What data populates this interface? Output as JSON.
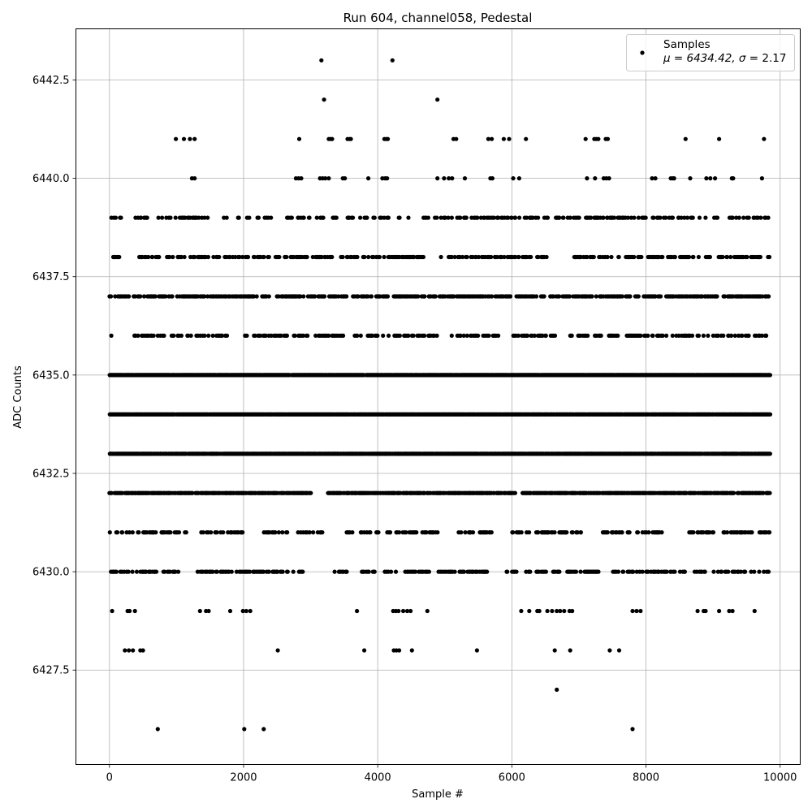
{
  "chart_data": {
    "type": "scatter",
    "title": "Run 604, channel058, Pedestal",
    "xlabel": "Sample #",
    "ylabel": "ADC Counts",
    "xlim": [
      -500,
      10300
    ],
    "ylim": [
      6425.1,
      6443.8
    ],
    "xticks": [
      0,
      2000,
      4000,
      6000,
      8000,
      10000
    ],
    "xtick_labels": [
      "0",
      "2000",
      "4000",
      "6000",
      "8000",
      "10000"
    ],
    "yticks": [
      6427.5,
      6430.0,
      6432.5,
      6435.0,
      6437.5,
      6440.0,
      6442.5
    ],
    "ytick_labels": [
      "6427.5",
      "6430.0",
      "6432.5",
      "6435.0",
      "6437.5",
      "6440.0",
      "6442.5"
    ],
    "grid": true,
    "legend_position": "top-right",
    "legend": {
      "label_line1": "Samples",
      "label_line2_prefix": "μ = 6434.42, ",
      "label_line2_sigma": "σ",
      "label_line2_suffix": " = 2.17"
    },
    "marker_color": "#000000",
    "n_samples": 9850,
    "mean": 6434.42,
    "sigma": 2.17,
    "level_occupancy": [
      {
        "y": 6443,
        "x": [
          3160,
          4220
        ]
      },
      {
        "y": 6442,
        "x": [
          3200,
          4890
        ]
      },
      {
        "y": 6441,
        "x": [
          990,
          1110,
          1200,
          1270,
          2830,
          3270,
          3300,
          3320,
          3550,
          3580,
          3600,
          4100,
          4130,
          4150,
          5130,
          5170,
          5650,
          5700,
          5880,
          5960,
          6210,
          7100,
          7230,
          7260,
          7290,
          7400,
          7430,
          8590,
          9090,
          9760
        ]
      },
      {
        "y": 6440,
        "x": [
          1230,
          1270,
          2780,
          2820,
          2860,
          3140,
          3180,
          3220,
          3270,
          3480,
          3510,
          3860,
          4070,
          4110,
          4140,
          4890,
          4990,
          5060,
          5110,
          5300,
          5680,
          5710,
          6020,
          6110,
          7120,
          7240,
          7370,
          7410,
          7450,
          8090,
          8140,
          8370,
          8400,
          8420,
          8660,
          8900,
          8960,
          9030,
          9280,
          9300,
          9730
        ]
      },
      {
        "y": 6439,
        "mode": "band",
        "density": 0.22,
        "gaps": [
          [
            220,
            380
          ],
          [
            560,
            700
          ],
          [
            1500,
            1700
          ],
          [
            1760,
            1900
          ],
          [
            2140,
            2200
          ],
          [
            2500,
            2600
          ]
        ]
      },
      {
        "y": 6438,
        "mode": "band",
        "density": 0.3,
        "gaps": [
          [
            180,
            250
          ],
          [
            270,
            420
          ],
          [
            6550,
            6900
          ]
        ]
      },
      {
        "y": 6437,
        "mode": "band",
        "density": 0.45,
        "gaps": [
          [
            2380,
            2460
          ]
        ]
      },
      {
        "y": 6436,
        "mode": "band",
        "density": 0.26,
        "gaps": [
          [
            40,
            120
          ],
          [
            200,
            300
          ],
          [
            1750,
            1950
          ],
          [
            2650,
            2700
          ],
          [
            3520,
            3650
          ],
          [
            3750,
            3850
          ],
          [
            5800,
            5950
          ],
          [
            6650,
            6800
          ]
        ]
      },
      {
        "y": 6435,
        "mode": "band",
        "density": 0.95,
        "gaps": []
      },
      {
        "y": 6434,
        "mode": "band",
        "density": 0.97,
        "gaps": []
      },
      {
        "y": 6433,
        "mode": "band",
        "density": 0.92,
        "gaps": []
      },
      {
        "y": 6432,
        "mode": "band",
        "density": 0.7,
        "gaps": [
          [
            3000,
            3250
          ],
          [
            6050,
            6150
          ]
        ]
      },
      {
        "y": 6431,
        "mode": "band",
        "density": 0.32,
        "gaps": [
          [
            1150,
            1350
          ],
          [
            2050,
            2250
          ],
          [
            2650,
            2800
          ],
          [
            3200,
            3520
          ],
          [
            4900,
            5200
          ],
          [
            5700,
            6000
          ],
          [
            7100,
            7300
          ],
          [
            8250,
            8550
          ]
        ]
      },
      {
        "y": 6430,
        "mode": "band",
        "density": 0.3,
        "gaps": [
          [
            1050,
            1300
          ],
          [
            2900,
            3350
          ],
          [
            3550,
            3700
          ],
          [
            3960,
            4100
          ],
          [
            4800,
            4900
          ],
          [
            5650,
            5900
          ],
          [
            6080,
            6200
          ],
          [
            7300,
            7500
          ],
          [
            8600,
            8700
          ],
          [
            8900,
            9000
          ]
        ]
      },
      {
        "y": 6429,
        "x": [
          40,
          270,
          300,
          380,
          1350,
          1440,
          1480,
          1800,
          1990,
          2040,
          2100,
          3690,
          4230,
          4270,
          4310,
          4380,
          4440,
          4490,
          4740,
          6140,
          6260,
          6380,
          6410,
          6530,
          6600,
          6670,
          6720,
          6780,
          6860,
          6900,
          7800,
          7860,
          7920,
          8770,
          8860,
          8890,
          9090,
          9240,
          9290,
          9620
        ]
      },
      {
        "y": 6428,
        "x": [
          230,
          290,
          350,
          460,
          500,
          2510,
          3800,
          4240,
          4280,
          4320,
          4510,
          5480,
          6640,
          6870,
          7460,
          7600
        ]
      },
      {
        "y": 6427,
        "x": [
          6670
        ]
      },
      {
        "y": 6426,
        "x": [
          720,
          2010,
          2300,
          7800
        ]
      }
    ]
  }
}
